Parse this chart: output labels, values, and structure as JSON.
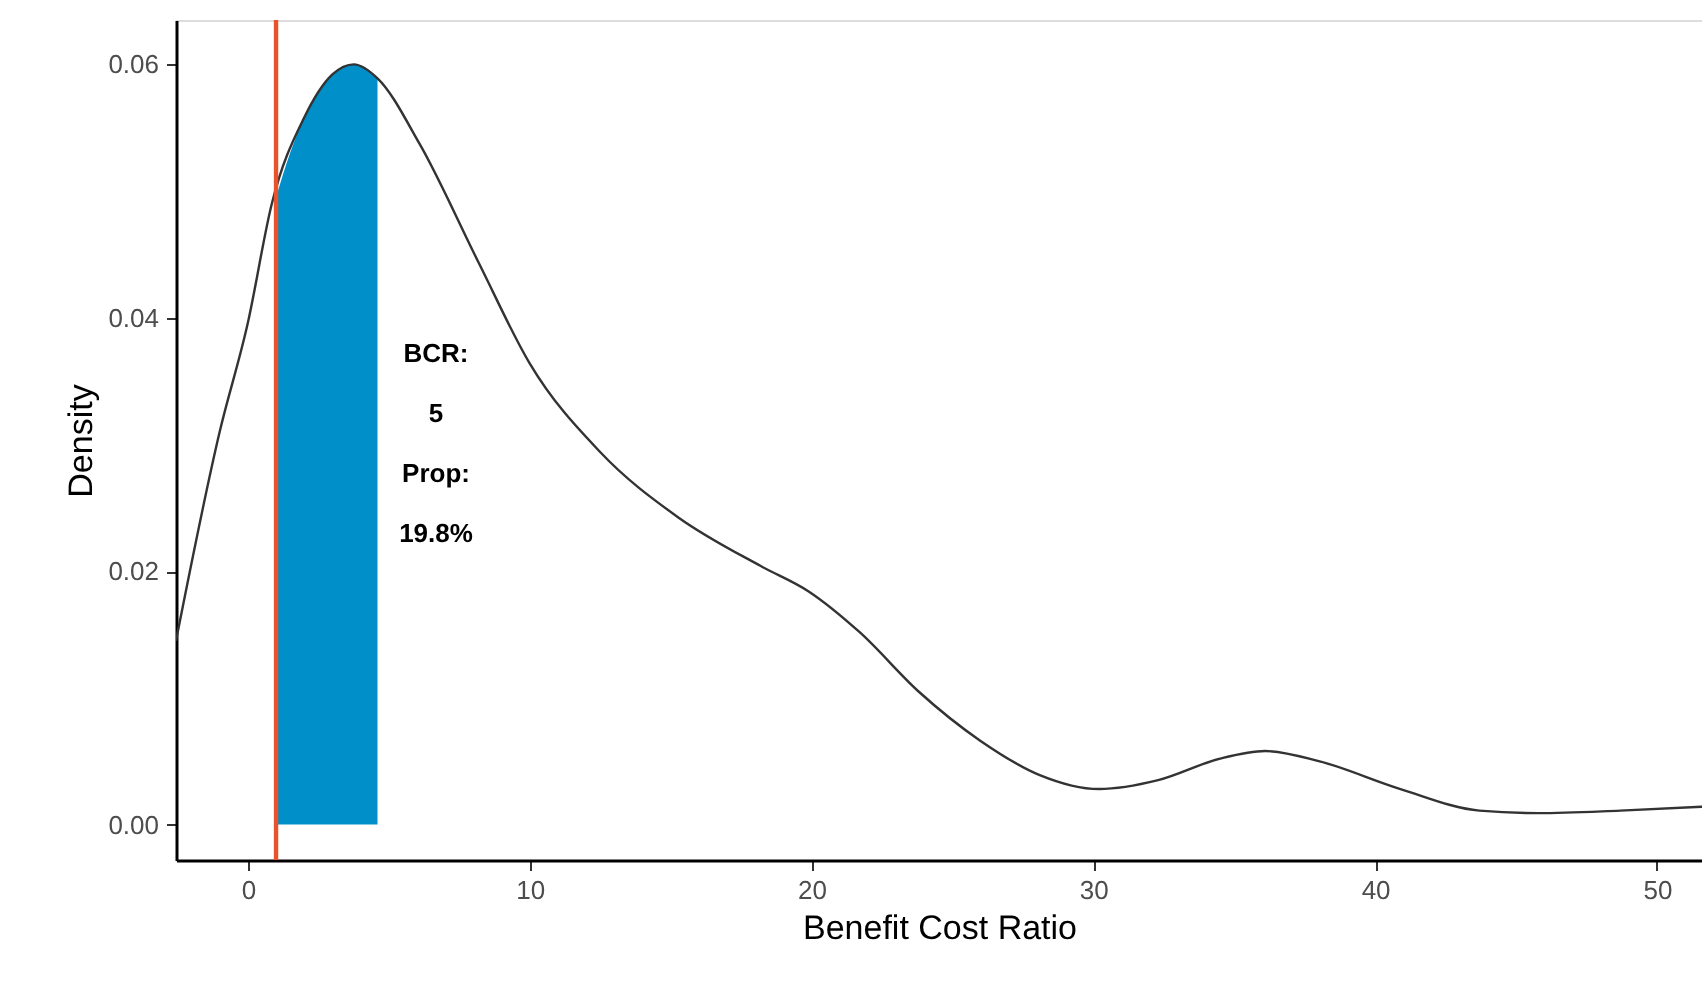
{
  "chart_data": {
    "type": "line",
    "xlabel": "Benefit Cost Ratio",
    "ylabel": "Density",
    "xlim": [
      -2.55,
      51.6
    ],
    "ylim": [
      -0.0028,
      0.0635
    ],
    "xticks": [
      0,
      10,
      20,
      30,
      40,
      50
    ],
    "yticks": [
      {
        "value": 0,
        "label": "0.00"
      },
      {
        "value": 0.02,
        "label": "0.02"
      },
      {
        "value": 0.04,
        "label": "0.04"
      },
      {
        "value": 0.06,
        "label": "0.06"
      }
    ],
    "grid": false,
    "series": [
      {
        "type": "area",
        "color": "#008fc8",
        "x": [
          1,
          1.5,
          2,
          2.5,
          3,
          3.5,
          3.76,
          4.2,
          4.6
        ],
        "values": [
          0.0495,
          0.053,
          0.0558,
          0.0578,
          0.0592,
          0.0599,
          0.06,
          0.0597,
          0.0589
        ]
      },
      {
        "color": "#333333",
        "x": [
          -2.55,
          -1,
          0,
          0.85,
          2,
          3,
          3.76,
          4.6,
          6.1,
          8.2,
          10,
          12.5,
          15.3,
          18.2,
          19.9,
          21.7,
          23.8,
          26,
          28.1,
          30.2,
          32.3,
          34.5,
          36.1,
          38,
          40.9,
          43.7,
          45.8,
          48.7,
          51.6
        ],
        "values": [
          0.0145,
          0.031,
          0.0396,
          0.049,
          0.0558,
          0.0592,
          0.06,
          0.0589,
          0.0537,
          0.0443,
          0.0364,
          0.0294,
          0.0242,
          0.0204,
          0.0184,
          0.0152,
          0.0105,
          0.0066,
          0.0039,
          0.0028,
          0.0035,
          0.0052,
          0.0058,
          0.005,
          0.0028,
          0.0011,
          0.0009,
          0.0011,
          0.0014
        ]
      }
    ],
    "ref_lines": [
      {
        "axis": "x",
        "value": 1,
        "color": "#e8532b"
      }
    ],
    "annotations": [
      "BCR:",
      "5",
      "Prop:",
      "19.8%"
    ]
  }
}
